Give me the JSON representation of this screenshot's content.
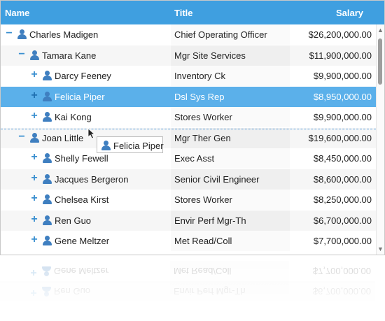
{
  "header": {
    "name": "Name",
    "title": "Title",
    "salary": "Salary"
  },
  "colors": {
    "header_bg": "#3f9fe0",
    "selected_bg": "#5bb0ea",
    "toggle": "#3a8fd0",
    "person_icon": "#3f7fc0"
  },
  "rows": [
    {
      "level": 0,
      "toggle": "−",
      "name": "Charles Madigen",
      "title": "Chief Operating Officer",
      "salary": "$26,200,000.00"
    },
    {
      "level": 1,
      "toggle": "−",
      "name": "Tamara Kane",
      "title": "Mgr Site Services",
      "salary": "$11,900,000.00"
    },
    {
      "level": 2,
      "toggle": "+",
      "name": "Darcy Feeney",
      "title": "Inventory Ck",
      "salary": "$9,900,000.00"
    },
    {
      "level": 2,
      "toggle": "+",
      "name": "Felicia Piper",
      "title": "Dsl Sys Rep",
      "salary": "$8,950,000.00",
      "selected": true
    },
    {
      "level": 2,
      "toggle": "+",
      "name": "Kai Kong",
      "title": "Stores Worker",
      "salary": "$9,900,000.00"
    },
    {
      "level": 1,
      "toggle": "−",
      "name": "Joan Little",
      "title": "Mgr Ther Gen",
      "salary": "$19,600,000.00"
    },
    {
      "level": 2,
      "toggle": "+",
      "name": "Shelly Fewell",
      "title": "Exec Asst",
      "salary": "$8,450,000.00"
    },
    {
      "level": 2,
      "toggle": "+",
      "name": "Jacques Bergeron",
      "title": "Senior Civil Engineer",
      "salary": "$8,600,000.00"
    },
    {
      "level": 2,
      "toggle": "+",
      "name": "Chelsea Kirst",
      "title": "Stores Worker",
      "salary": "$8,250,000.00"
    },
    {
      "level": 2,
      "toggle": "+",
      "name": "Ren Guo",
      "title": "Envir Perf Mgr-Th",
      "salary": "$6,700,000.00"
    },
    {
      "level": 2,
      "toggle": "+",
      "name": "Gene Meltzer",
      "title": "Met Read/Coll",
      "salary": "$7,700,000.00"
    }
  ],
  "drag": {
    "label": "Felicia Piper"
  },
  "scrollbar": {
    "up": "▲",
    "down": "▼"
  }
}
